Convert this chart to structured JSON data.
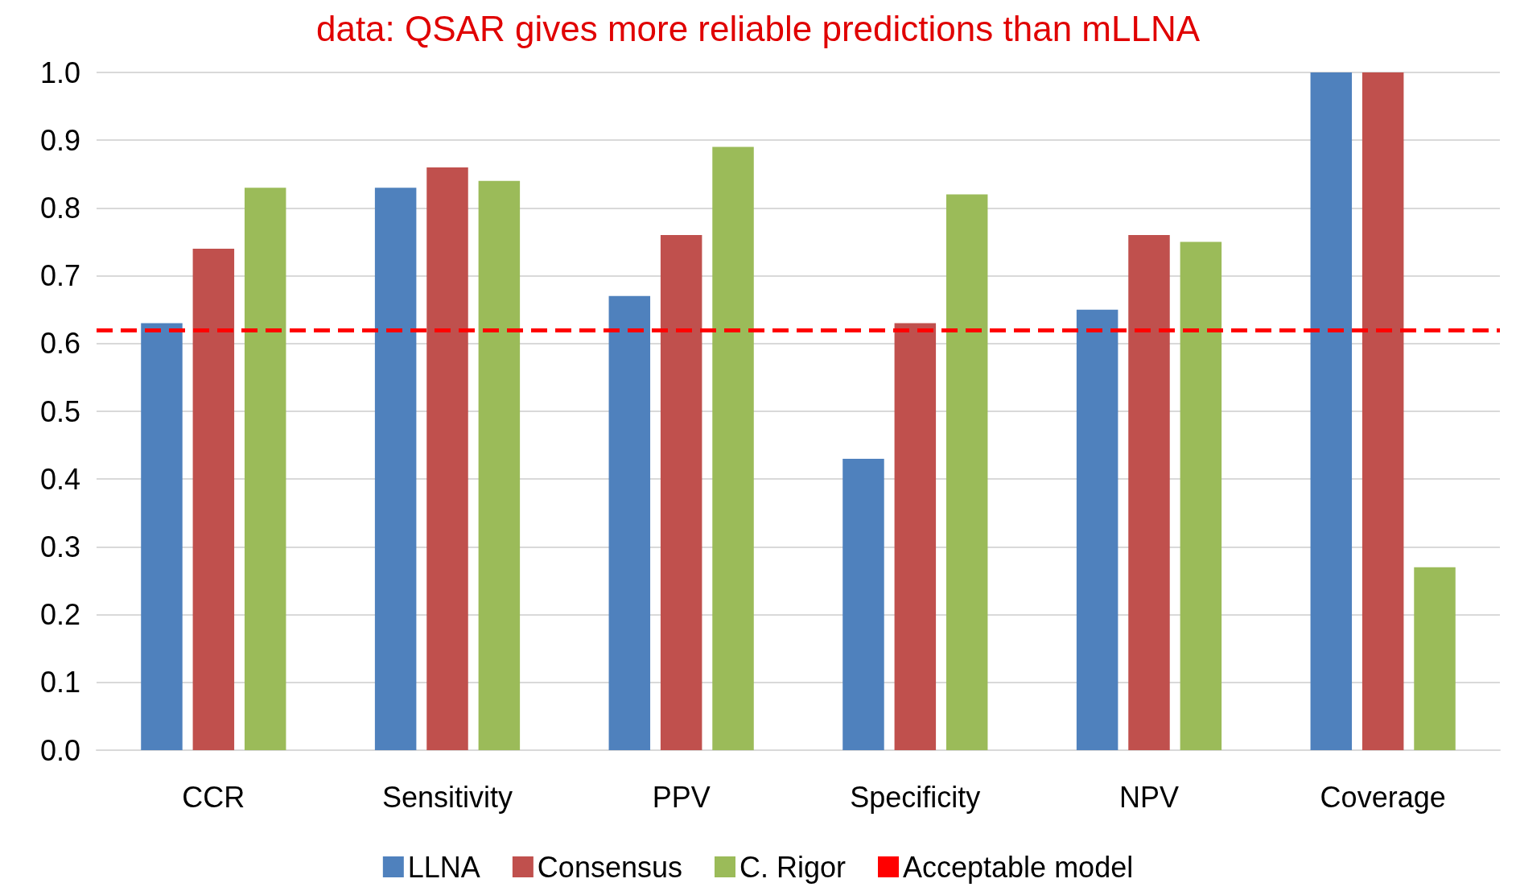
{
  "chart_data": {
    "type": "bar",
    "title": "data: QSAR gives more reliable predictions than mLLNA",
    "categories": [
      "CCR",
      "Sensitivity",
      "PPV",
      "Specificity",
      "NPV",
      "Coverage"
    ],
    "series": [
      {
        "name": "LLNA",
        "color": "#4f81bd",
        "values": [
          0.63,
          0.83,
          0.67,
          0.43,
          0.65,
          1.0
        ]
      },
      {
        "name": "Consensus",
        "color": "#c0504d",
        "values": [
          0.74,
          0.86,
          0.76,
          0.63,
          0.76,
          1.0
        ]
      },
      {
        "name": "C. Rigor",
        "color": "#9bbb59",
        "values": [
          0.83,
          0.84,
          0.89,
          0.82,
          0.75,
          0.27
        ]
      }
    ],
    "ylim": [
      0,
      1
    ],
    "yticks": [
      {
        "value": 0,
        "label": "0.0"
      },
      {
        "value": 0.1,
        "label": "0.1"
      },
      {
        "value": 0.2,
        "label": "0.2"
      },
      {
        "value": 0.3,
        "label": "0.3"
      },
      {
        "value": 0.4,
        "label": "0.4"
      },
      {
        "value": 0.5,
        "label": "0.5"
      },
      {
        "value": 0.6,
        "label": "0.6"
      },
      {
        "value": 0.7,
        "label": "0.7"
      },
      {
        "value": 0.8,
        "label": "0.8"
      },
      {
        "value": 0.9,
        "label": "0.9"
      },
      {
        "value": 1,
        "label": "1.0"
      }
    ],
    "ref_lines": [
      {
        "axis": "y",
        "value": 0.62,
        "label": "Acceptable model",
        "color": "#ff0000",
        "line_style": "dashed"
      }
    ],
    "grid": "y",
    "legend": "bottom"
  }
}
